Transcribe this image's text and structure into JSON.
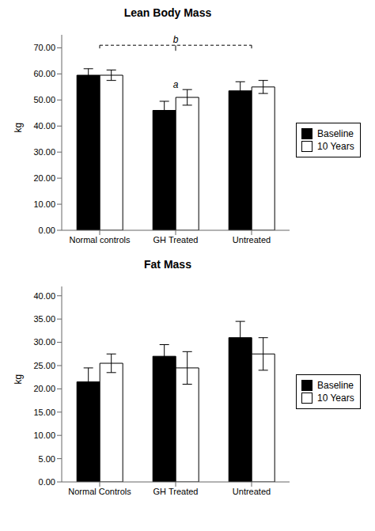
{
  "chart_data": [
    {
      "type": "bar",
      "title": "Lean Body Mass",
      "y_label": "kg",
      "categories": [
        "Normal controls",
        "GH Treated",
        "Untreated"
      ],
      "series": [
        {
          "name": "Baseline",
          "color": "#000000",
          "values": [
            59.5,
            46.0,
            53.5
          ],
          "errors": [
            2.5,
            3.5,
            3.5
          ]
        },
        {
          "name": "10 Years",
          "color": "#ffffff",
          "values": [
            59.5,
            51.0,
            55.0
          ],
          "errors": [
            2.0,
            3.0,
            2.5
          ]
        }
      ],
      "ylim": [
        0,
        75
      ],
      "yticks": [
        {
          "value": 0,
          "label": "0.00"
        },
        {
          "value": 10,
          "label": "10.00"
        },
        {
          "value": 20,
          "label": "20.00"
        },
        {
          "value": 30,
          "label": "30.00"
        },
        {
          "value": 40,
          "label": "40.00"
        },
        {
          "value": 50,
          "label": "50.00"
        },
        {
          "value": 60,
          "label": "60.00"
        },
        {
          "value": 70,
          "label": "70.00"
        }
      ],
      "legend": "right",
      "annotations": [
        {
          "text": "a",
          "x": "GH Treated",
          "y": 54
        },
        {
          "text": "b",
          "x": [
            "Normal controls",
            "Untreated"
          ],
          "y": 71,
          "line_style": "dashed"
        }
      ]
    },
    {
      "type": "bar",
      "title": "Fat Mass",
      "y_label": "kg",
      "categories": [
        "Normal Controls",
        "GH Treated",
        "Untreated"
      ],
      "series": [
        {
          "name": "Baseline",
          "color": "#000000",
          "values": [
            21.5,
            27.0,
            31.0
          ],
          "errors": [
            3.0,
            2.5,
            3.5
          ]
        },
        {
          "name": "10 Years",
          "color": "#ffffff",
          "values": [
            25.5,
            24.5,
            27.5
          ],
          "errors": [
            2.0,
            3.5,
            3.5
          ]
        }
      ],
      "ylim": [
        0,
        42
      ],
      "yticks": [
        {
          "value": 0,
          "label": "0.00"
        },
        {
          "value": 5,
          "label": "5.00"
        },
        {
          "value": 10,
          "label": "10.00"
        },
        {
          "value": 15,
          "label": "15.00"
        },
        {
          "value": 20,
          "label": "20.00"
        },
        {
          "value": 25,
          "label": "25.00"
        },
        {
          "value": 30,
          "label": "30.00"
        },
        {
          "value": 35,
          "label": "35.00"
        },
        {
          "value": 40,
          "label": "40.00"
        }
      ],
      "legend": "right"
    }
  ]
}
